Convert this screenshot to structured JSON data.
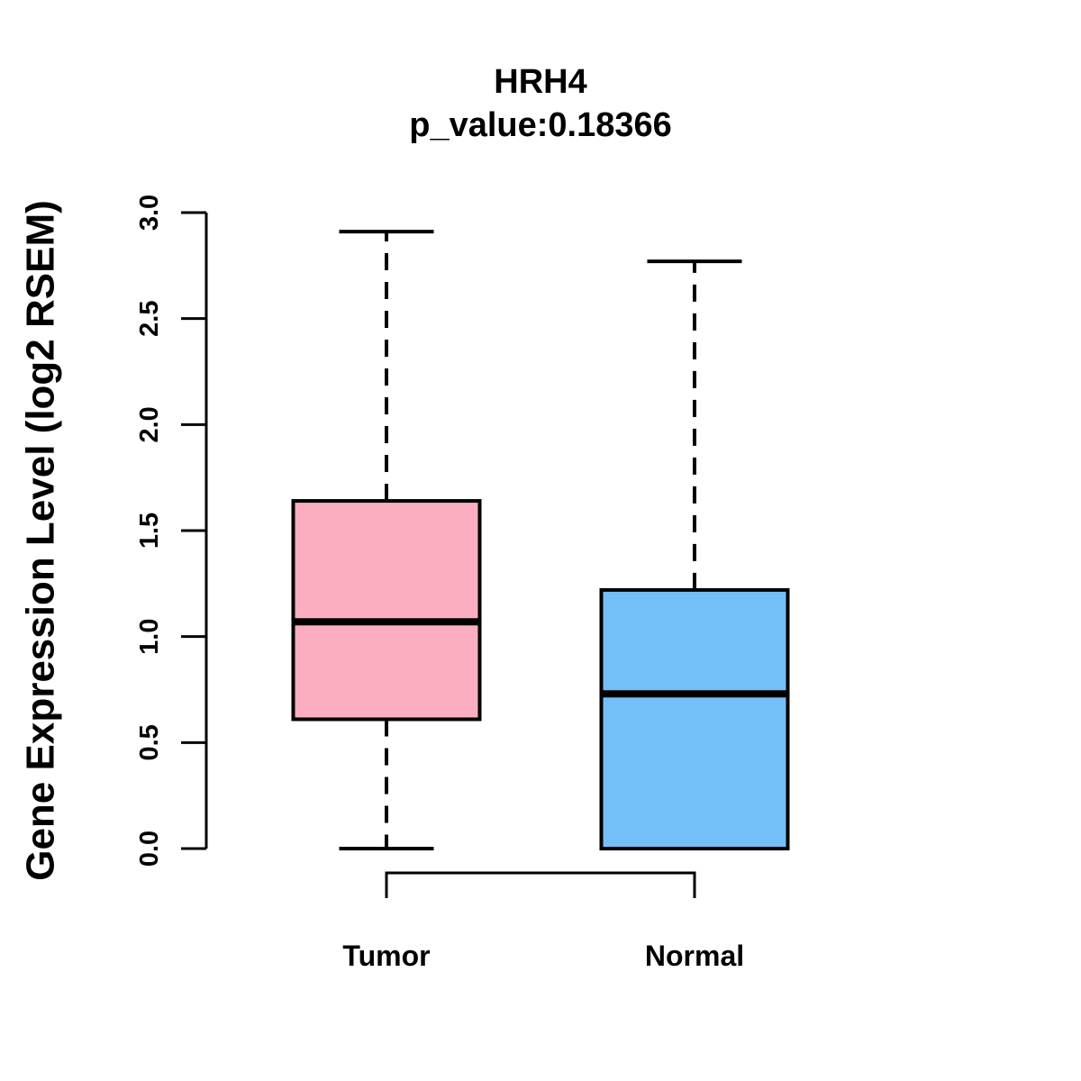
{
  "chart_data": {
    "type": "boxplot",
    "title": "HRH4",
    "subtitle": "p_value:0.18366",
    "ylabel": "Gene Expression Level (log2 RSEM)",
    "xlabel": "",
    "categories": [
      "Tumor",
      "Normal"
    ],
    "ylim": [
      0.0,
      3.0
    ],
    "yticks": [
      0.0,
      0.5,
      1.0,
      1.5,
      2.0,
      2.5,
      3.0
    ],
    "grid": false,
    "legend": "none",
    "series": [
      {
        "name": "Tumor",
        "color": "#FCAEC1",
        "min": 0.0,
        "q1": 0.61,
        "median": 1.07,
        "q3": 1.64,
        "max": 2.91
      },
      {
        "name": "Normal",
        "color": "#74BFF7",
        "min": 0.0,
        "q1": 0.0,
        "median": 0.73,
        "q3": 1.22,
        "max": 2.77
      }
    ],
    "annotations": {
      "comparison_bracket": [
        "Tumor",
        "Normal"
      ]
    },
    "colors": {
      "tumor_fill": "#FCAEC1",
      "normal_fill": "#74BFF7",
      "line": "#000000",
      "background": "#FFFFFF"
    }
  }
}
